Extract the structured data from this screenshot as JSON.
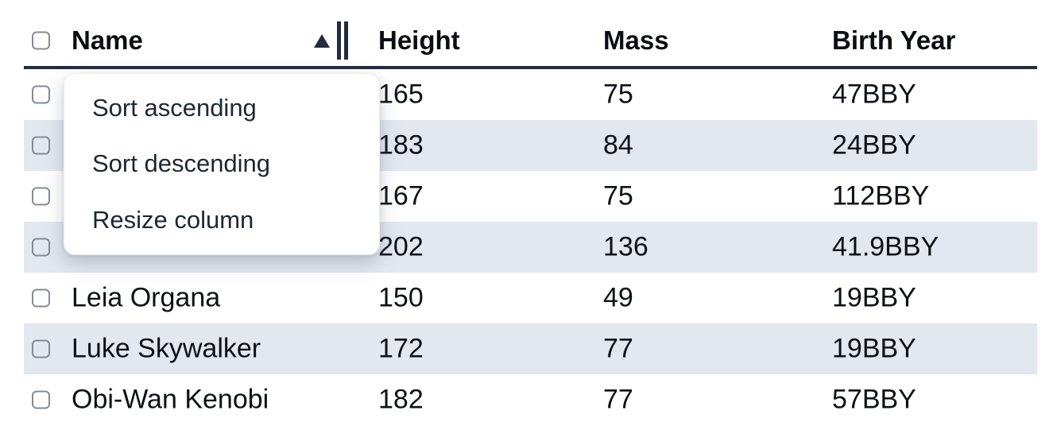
{
  "table": {
    "columns": [
      {
        "label": "Name"
      },
      {
        "label": "Height"
      },
      {
        "label": "Mass"
      },
      {
        "label": "Birth Year"
      }
    ],
    "sort": {
      "column": "Name",
      "direction": "ascending"
    },
    "rows": [
      {
        "name": "",
        "height": "165",
        "mass": "75",
        "birth_year": "47BBY"
      },
      {
        "name": "",
        "height": "183",
        "mass": "84",
        "birth_year": "24BBY"
      },
      {
        "name": "",
        "height": "167",
        "mass": "75",
        "birth_year": "112BBY"
      },
      {
        "name": "",
        "height": "202",
        "mass": "136",
        "birth_year": "41.9BBY"
      },
      {
        "name": "Leia Organa",
        "height": "150",
        "mass": "49",
        "birth_year": "19BBY"
      },
      {
        "name": "Luke Skywalker",
        "height": "172",
        "mass": "77",
        "birth_year": "19BBY"
      },
      {
        "name": "Obi-Wan Kenobi",
        "height": "182",
        "mass": "77",
        "birth_year": "57BBY"
      }
    ]
  },
  "context_menu": {
    "items": [
      {
        "label": "Sort ascending"
      },
      {
        "label": "Sort descending"
      },
      {
        "label": "Resize column"
      }
    ]
  },
  "colors": {
    "stripe": "#e2e7f0",
    "rule": "#222c3f",
    "body-text": "#0e1116",
    "header-text": "#0b0e13",
    "menu-text": "#1d2635",
    "checkbox-border": "#858b94"
  }
}
